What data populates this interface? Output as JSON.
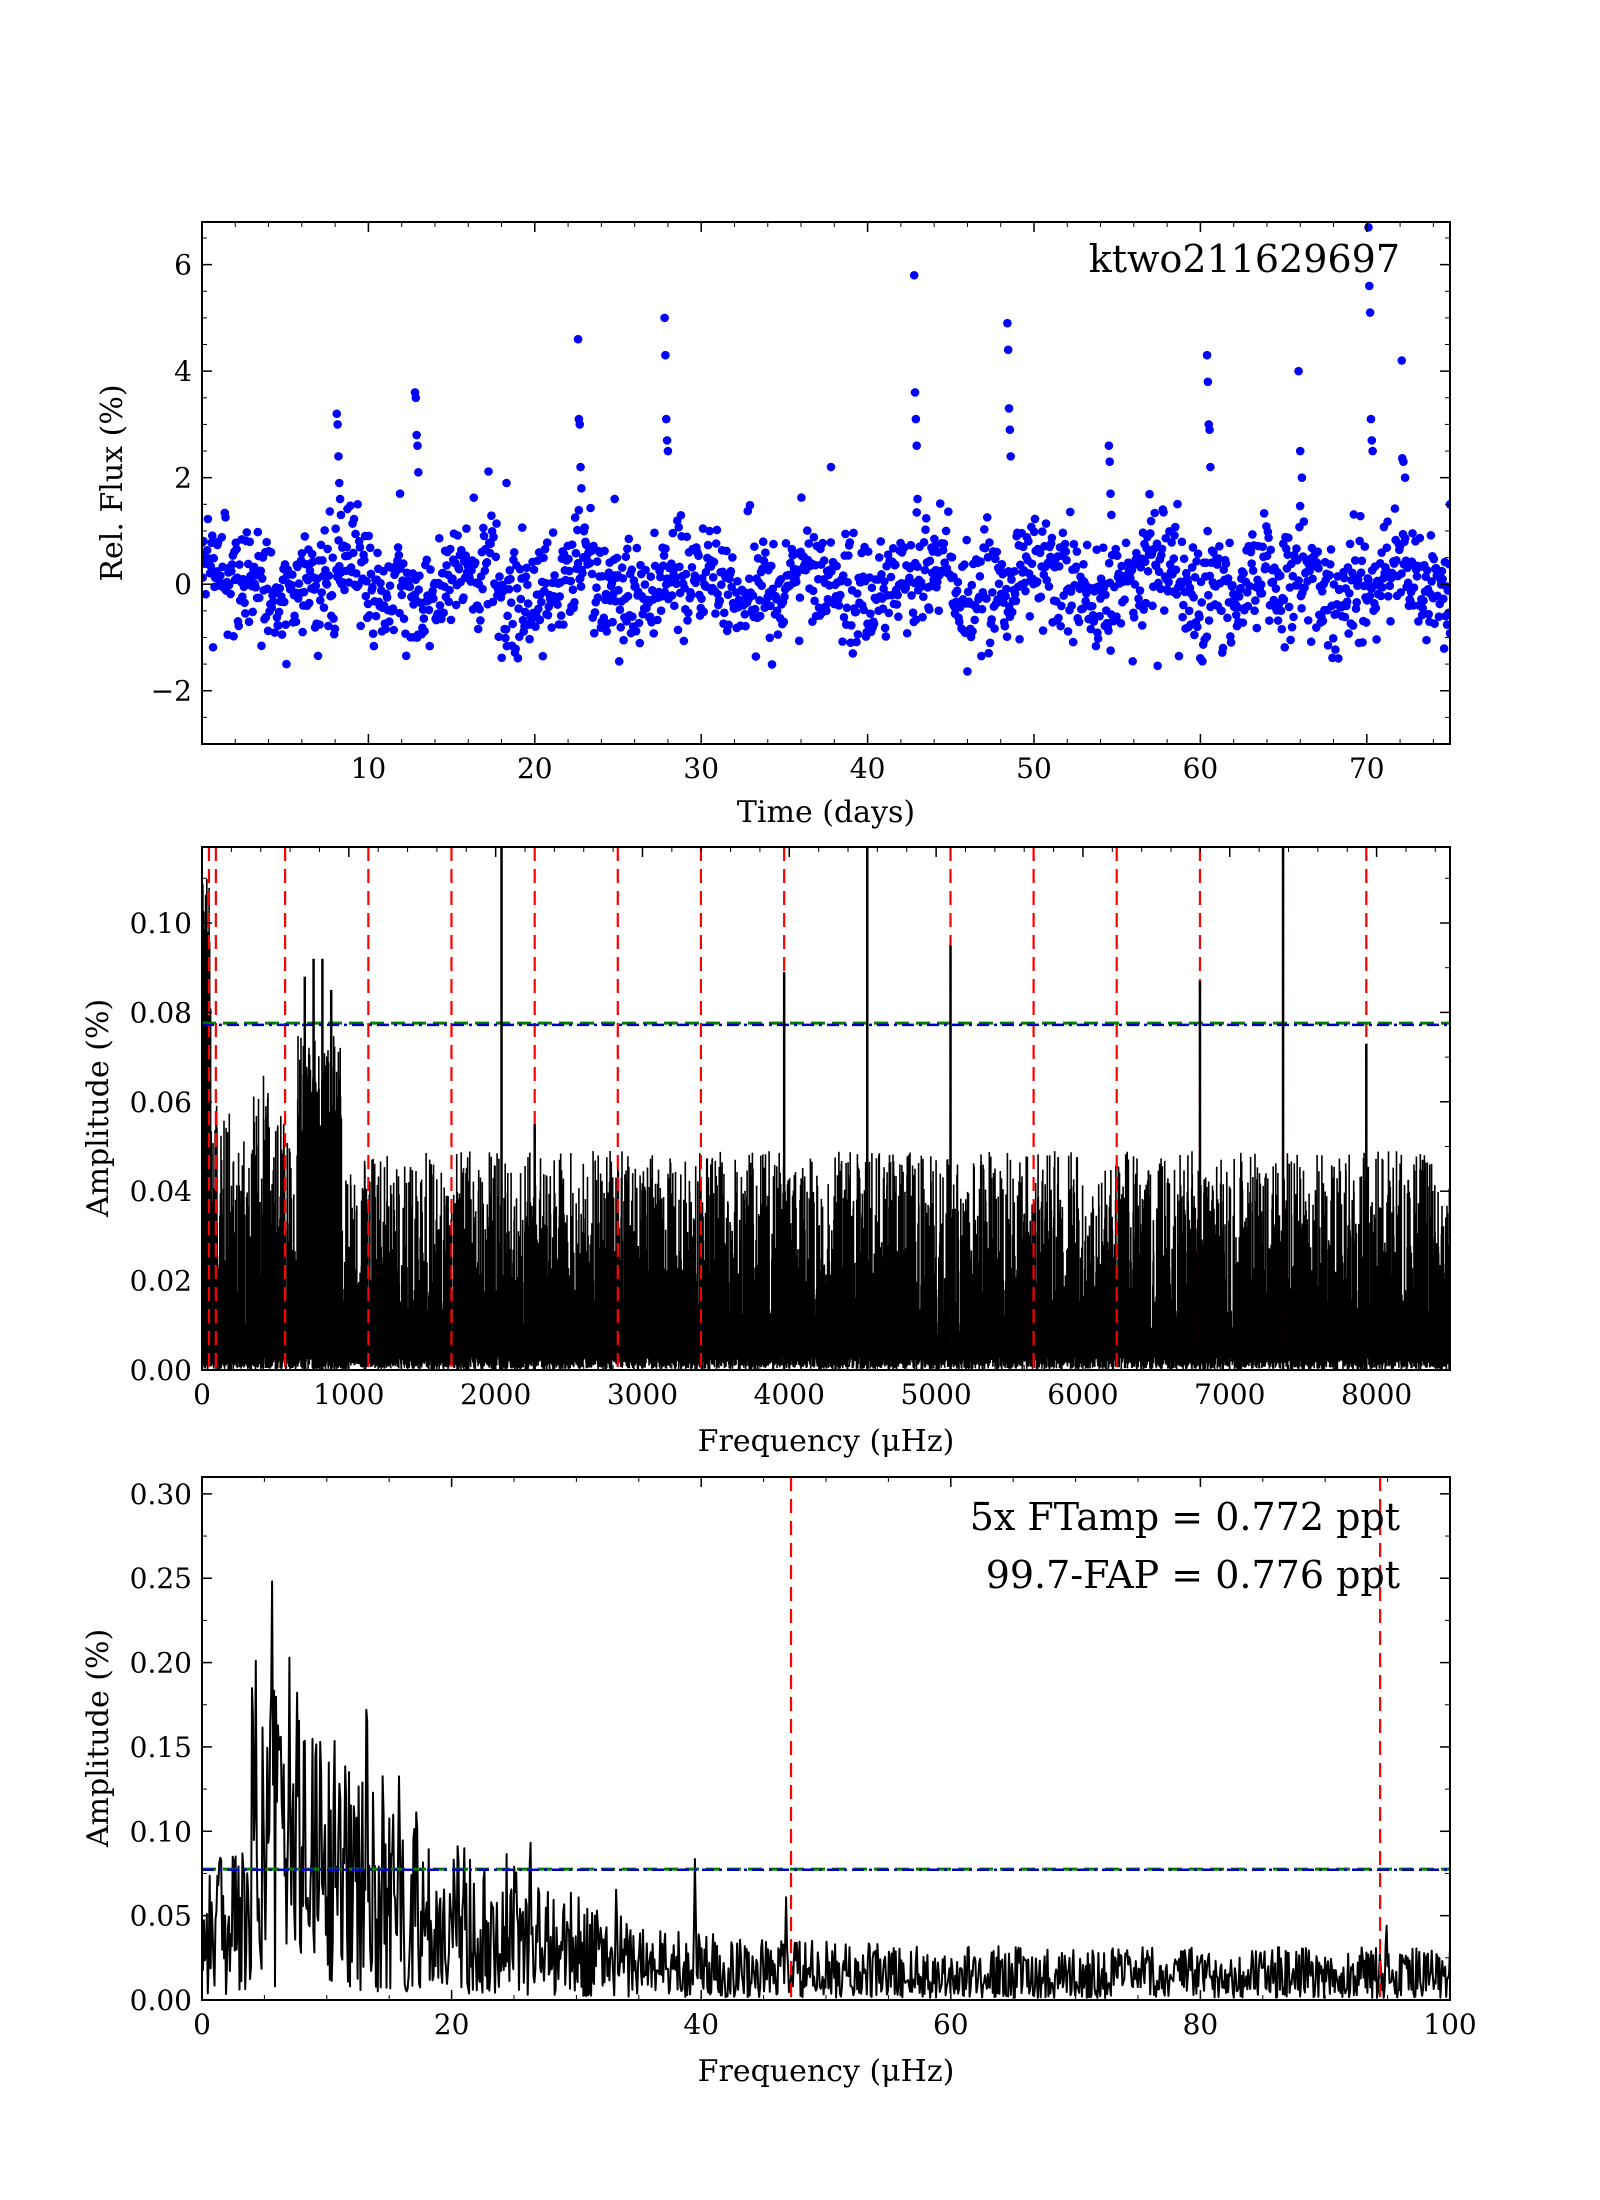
{
  "colors": {
    "points": "#0000ff",
    "trace": "#000000",
    "harmonic": "#ff0000",
    "ft_threshold": "#0000cc",
    "fap_threshold": "#008000",
    "target_label": "#ff0000",
    "ft_label": "#0000ff",
    "fap_label": "#008000"
  },
  "chart_data": [
    {
      "type": "scatter",
      "title": "",
      "annotation": "ktwo211629697",
      "xlabel": "Time (days)",
      "ylabel": "Rel. Flux (%)",
      "xlim": [
        0,
        75
      ],
      "ylim": [
        -3,
        6.8
      ],
      "xticks": [
        10,
        20,
        30,
        40,
        50,
        60,
        70
      ],
      "yticks": [
        -2,
        0,
        2,
        4,
        6
      ],
      "ytick_labels": [
        "−2",
        "0",
        "2",
        "4",
        "6"
      ],
      "series": [
        {
          "name": "light curve",
          "note": "outburst points (days, % flux); the dense quiescent scatter around 0 (sigma about 0.6 %) is sampled by the drawing script",
          "x": [
            8.1,
            8.15,
            8.2,
            8.25,
            8.3,
            8.35,
            12.8,
            12.85,
            12.9,
            12.95,
            13.0,
            22.6,
            22.65,
            22.7,
            22.75,
            22.8,
            27.8,
            27.85,
            27.9,
            27.95,
            28.0,
            42.8,
            42.85,
            42.9,
            42.95,
            43.0,
            48.4,
            48.45,
            48.5,
            48.55,
            48.6,
            54.5,
            54.55,
            54.6,
            54.65,
            60.4,
            60.45,
            60.5,
            60.55,
            60.6,
            65.9,
            66.0,
            66.1,
            70.1,
            70.15,
            70.2,
            70.25,
            70.3,
            70.35,
            72.1,
            72.2,
            72.3,
            11.9,
            18.3,
            24.8,
            37.8,
            75.0
          ],
          "y": [
            3.2,
            3.0,
            2.4,
            1.9,
            1.6,
            1.3,
            3.6,
            3.5,
            2.8,
            2.6,
            2.1,
            4.6,
            3.1,
            3.0,
            2.2,
            1.8,
            5.0,
            4.3,
            3.1,
            2.7,
            2.5,
            5.8,
            3.6,
            3.1,
            2.6,
            1.6,
            4.9,
            4.4,
            3.3,
            2.9,
            2.4,
            2.6,
            2.3,
            1.7,
            1.3,
            4.3,
            3.8,
            3.0,
            2.9,
            2.2,
            4.0,
            2.5,
            2.0,
            6.7,
            5.6,
            5.1,
            3.1,
            2.7,
            2.5,
            4.2,
            2.3,
            2.0,
            1.7,
            1.9,
            1.6,
            2.2,
            1.5
          ]
        }
      ]
    },
    {
      "type": "line",
      "title": "",
      "xlabel": "Frequency (μHz)",
      "ylabel": "Amplitude (%)",
      "xlim": [
        0,
        8500
      ],
      "ylim": [
        0,
        0.117
      ],
      "xticks": [
        0,
        1000,
        2000,
        3000,
        4000,
        5000,
        6000,
        7000,
        8000
      ],
      "yticks": [
        0.0,
        0.02,
        0.04,
        0.06,
        0.08,
        0.1
      ],
      "ytick_labels": [
        "0.00",
        "0.02",
        "0.04",
        "0.06",
        "0.08",
        "0.10"
      ],
      "thresholds": {
        "ft_5x": 0.0772,
        "fap_99_7": 0.0776
      },
      "harmonic_lines": [
        47.2,
        94.4,
        566,
        1133,
        1699,
        2266,
        2832,
        3398,
        3965,
        4531,
        5098,
        5664,
        6230,
        6797,
        7363,
        7930
      ],
      "series": [
        {
          "name": "amplitude spectrum peaks",
          "note": "strong spectral lines (μHz, % amplitude); broad noise floor near 0.03 % and excess power near 800 μHz are sampled by the drawing script",
          "x": [
            2040,
            3965,
            4531,
            5098,
            6797,
            7363,
            7930,
            2266,
            700,
            760,
            820,
            880
          ],
          "y": [
            0.117,
            0.089,
            0.117,
            0.095,
            0.087,
            0.117,
            0.073,
            0.055,
            0.088,
            0.092,
            0.092,
            0.085
          ]
        }
      ]
    },
    {
      "type": "line",
      "title": "",
      "xlabel": "Frequency (μHz)",
      "ylabel": "Amplitude (%)",
      "xlim": [
        0,
        100
      ],
      "ylim": [
        0,
        0.31
      ],
      "xticks": [
        0,
        20,
        40,
        60,
        80,
        100
      ],
      "yticks": [
        0.0,
        0.05,
        0.1,
        0.15,
        0.2,
        0.25,
        0.3
      ],
      "ytick_labels": [
        "0.00",
        "0.05",
        "0.10",
        "0.15",
        "0.20",
        "0.25",
        "0.30"
      ],
      "thresholds": {
        "ft_5x": 0.0772,
        "fap_99_7": 0.0776
      },
      "harmonic_lines": [
        47.2,
        94.4
      ],
      "annotations": [
        "5x FTamp = 0.772 ppt",
        "99.7-FAP = 0.776 ppt"
      ],
      "series": [
        {
          "name": "amplitude spectrum (zoom)",
          "note": "prominent low-frequency peaks (μHz, % amplitude); remaining noise is sampled by the drawing script",
          "x": [
            1.5,
            2.5,
            4.3,
            5.6,
            6.2,
            7.0,
            7.6,
            8.2,
            9.5,
            10.6,
            11.5,
            13.2,
            14.5,
            15.8,
            17.2,
            21.0,
            26.3,
            33.2,
            39.5,
            46.8,
            94.9
          ],
          "y": [
            0.11,
            0.11,
            0.19,
            0.283,
            0.2,
            0.21,
            0.21,
            0.2,
            0.19,
            0.18,
            0.17,
            0.222,
            0.16,
            0.15,
            0.14,
            0.1,
            0.113,
            0.075,
            0.088,
            0.063,
            0.05
          ]
        }
      ]
    }
  ]
}
